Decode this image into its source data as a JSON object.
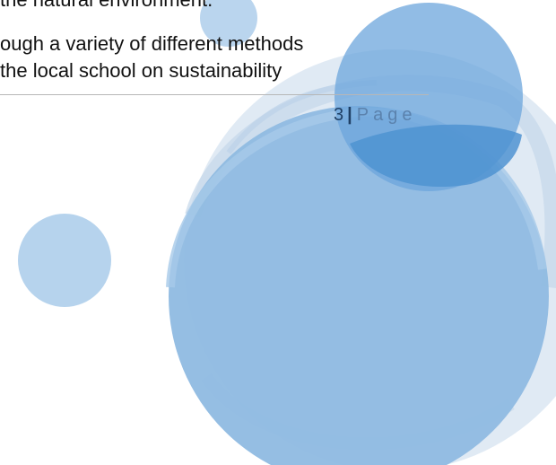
{
  "document": {
    "lines": [
      "the natural environment.",
      "ough a variety of different methods",
      "the local school on sustainability"
    ]
  },
  "footer": {
    "page_number": "3",
    "separator": "|",
    "page_label": "Page"
  },
  "colors": {
    "circle_light": "#c9dcef",
    "circle_mid": "#8fbbe2",
    "circle_dark": "#4f93d1"
  }
}
